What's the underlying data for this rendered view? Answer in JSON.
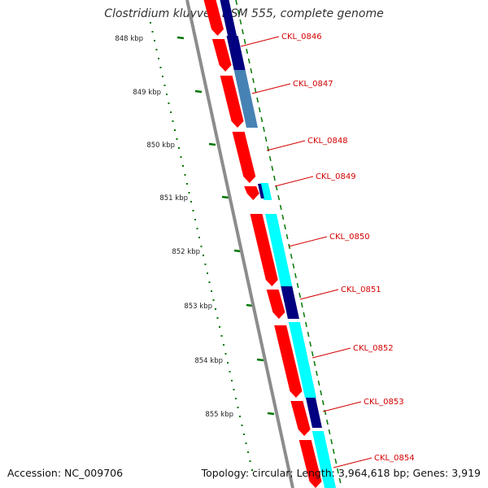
{
  "title": "Clostridium kluyveri DSM 555, complete genome",
  "footer": {
    "accession": "Accession: NC_009706",
    "stats": "Topology: circular; Length: 3,964,618 bp; Genes: 3,919"
  },
  "scale": {
    "unit": "kbp",
    "ticks": [
      "848 kbp",
      "849 kbp",
      "850 kbp",
      "851 kbp",
      "852 kbp",
      "853 kbp",
      "854 kbp",
      "855 kbp"
    ]
  },
  "genes": [
    "CKL_0846",
    "CKL_0847",
    "CKL_0848",
    "CKL_0849",
    "CKL_0850",
    "CKL_0851",
    "CKL_0852",
    "CKL_0853",
    "CKL_0854"
  ],
  "colors": {
    "cds": "#ff0000",
    "forward_dark": "#000080",
    "forward_steel": "#4682b4",
    "forward_cyan": "#00ffff",
    "backbone": "#8c8c8c",
    "tick": "#007700",
    "label": "#d40000"
  }
}
